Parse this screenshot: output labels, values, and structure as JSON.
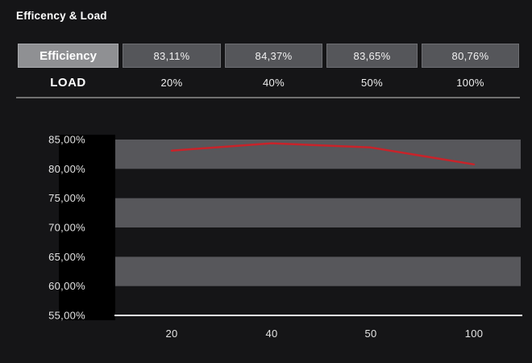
{
  "title": "Efficency & Load",
  "table": {
    "header_label": "Efficiency",
    "efficiency_values": [
      "83,11%",
      "84,37%",
      "83,65%",
      "80,76%"
    ],
    "load_label": "LOAD",
    "load_values": [
      "20%",
      "40%",
      "50%",
      "100%"
    ]
  },
  "chart_data": {
    "type": "line",
    "title": "Efficency & Load",
    "x": [
      20,
      40,
      50,
      100
    ],
    "x_tick_labels": [
      "20",
      "40",
      "50",
      "100"
    ],
    "series": [
      {
        "name": "Efficiency",
        "values": [
          83.11,
          84.37,
          83.65,
          80.76
        ],
        "color": "#c8232a"
      }
    ],
    "ylim": [
      55,
      85
    ],
    "y_tick_step": 5,
    "y_tick_labels": [
      "85,00%",
      "80,00%",
      "75,00%",
      "70,00%",
      "65,00%",
      "60,00%",
      "55,00%"
    ],
    "grid": "horizontal-alternating-bands",
    "legend": "none"
  },
  "colors": {
    "background": "#151517",
    "band_gray": "#57575b",
    "axis_label_backdrop": "#000000",
    "table_header_bg": "#8f9093",
    "table_value_bg": "#55565a",
    "line_red": "#c8232a",
    "axis_line": "#f2f2f2",
    "divider": "#707070",
    "text": "#ffffff"
  }
}
